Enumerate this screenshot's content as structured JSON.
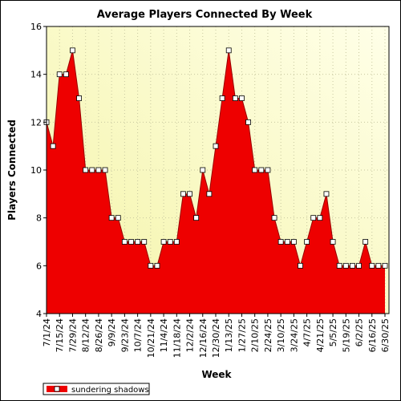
{
  "chart_data": {
    "type": "area",
    "title": "Average Players Connected By Week",
    "xlabel": "Week",
    "ylabel": "Players Connected",
    "ylim": [
      4,
      16
    ],
    "yticks": [
      4,
      6,
      8,
      10,
      12,
      14,
      16
    ],
    "grid": true,
    "legend_placement": "bottom-left",
    "colors": {
      "fill": "#ee0000",
      "line": "#990000",
      "plot_bg_light": "#ffffe8",
      "plot_bg_dark": "#f4f4a8"
    },
    "x_tick_labels": [
      "7/1/24",
      "7/15/24",
      "7/29/24",
      "8/12/24",
      "8/26/24",
      "9/9/24",
      "9/23/24",
      "10/7/24",
      "10/21/24",
      "11/4/24",
      "11/18/24",
      "12/2/24",
      "12/16/24",
      "12/30/24",
      "1/13/25",
      "1/27/25",
      "2/10/25",
      "2/24/25",
      "3/10/25",
      "3/24/25",
      "4/7/25",
      "4/21/25",
      "5/5/25",
      "5/19/25",
      "6/2/25",
      "6/16/25",
      "6/30/25"
    ],
    "series": [
      {
        "name": "sundering shadows",
        "x": [
          "7/1/24",
          "7/8/24",
          "7/15/24",
          "7/22/24",
          "7/29/24",
          "8/5/24",
          "8/12/24",
          "8/19/24",
          "8/26/24",
          "9/2/24",
          "9/9/24",
          "9/16/24",
          "9/23/24",
          "9/30/24",
          "10/7/24",
          "10/14/24",
          "10/21/24",
          "10/28/24",
          "11/4/24",
          "11/11/24",
          "11/18/24",
          "11/25/24",
          "12/2/24",
          "12/9/24",
          "12/16/24",
          "12/23/24",
          "12/30/24",
          "1/6/25",
          "1/13/25",
          "1/20/25",
          "1/27/25",
          "2/3/25",
          "2/10/25",
          "2/17/25",
          "2/24/25",
          "3/3/25",
          "3/10/25",
          "3/17/25",
          "3/24/25",
          "3/31/25",
          "4/7/25",
          "4/14/25",
          "4/21/25",
          "4/28/25",
          "5/5/25",
          "5/12/25",
          "5/19/25",
          "5/26/25",
          "6/2/25",
          "6/9/25",
          "6/16/25",
          "6/23/25",
          "6/30/25"
        ],
        "values": [
          12,
          11,
          14,
          14,
          15,
          13,
          10,
          10,
          10,
          10,
          8,
          8,
          7,
          7,
          7,
          7,
          6,
          6,
          7,
          7,
          7,
          9,
          9,
          8,
          10,
          9,
          11,
          13,
          15,
          13,
          13,
          12,
          10,
          10,
          10,
          8,
          7,
          7,
          7,
          6,
          7,
          8,
          8,
          9,
          7,
          6,
          6,
          6,
          6,
          7,
          6,
          6,
          6
        ]
      }
    ]
  }
}
